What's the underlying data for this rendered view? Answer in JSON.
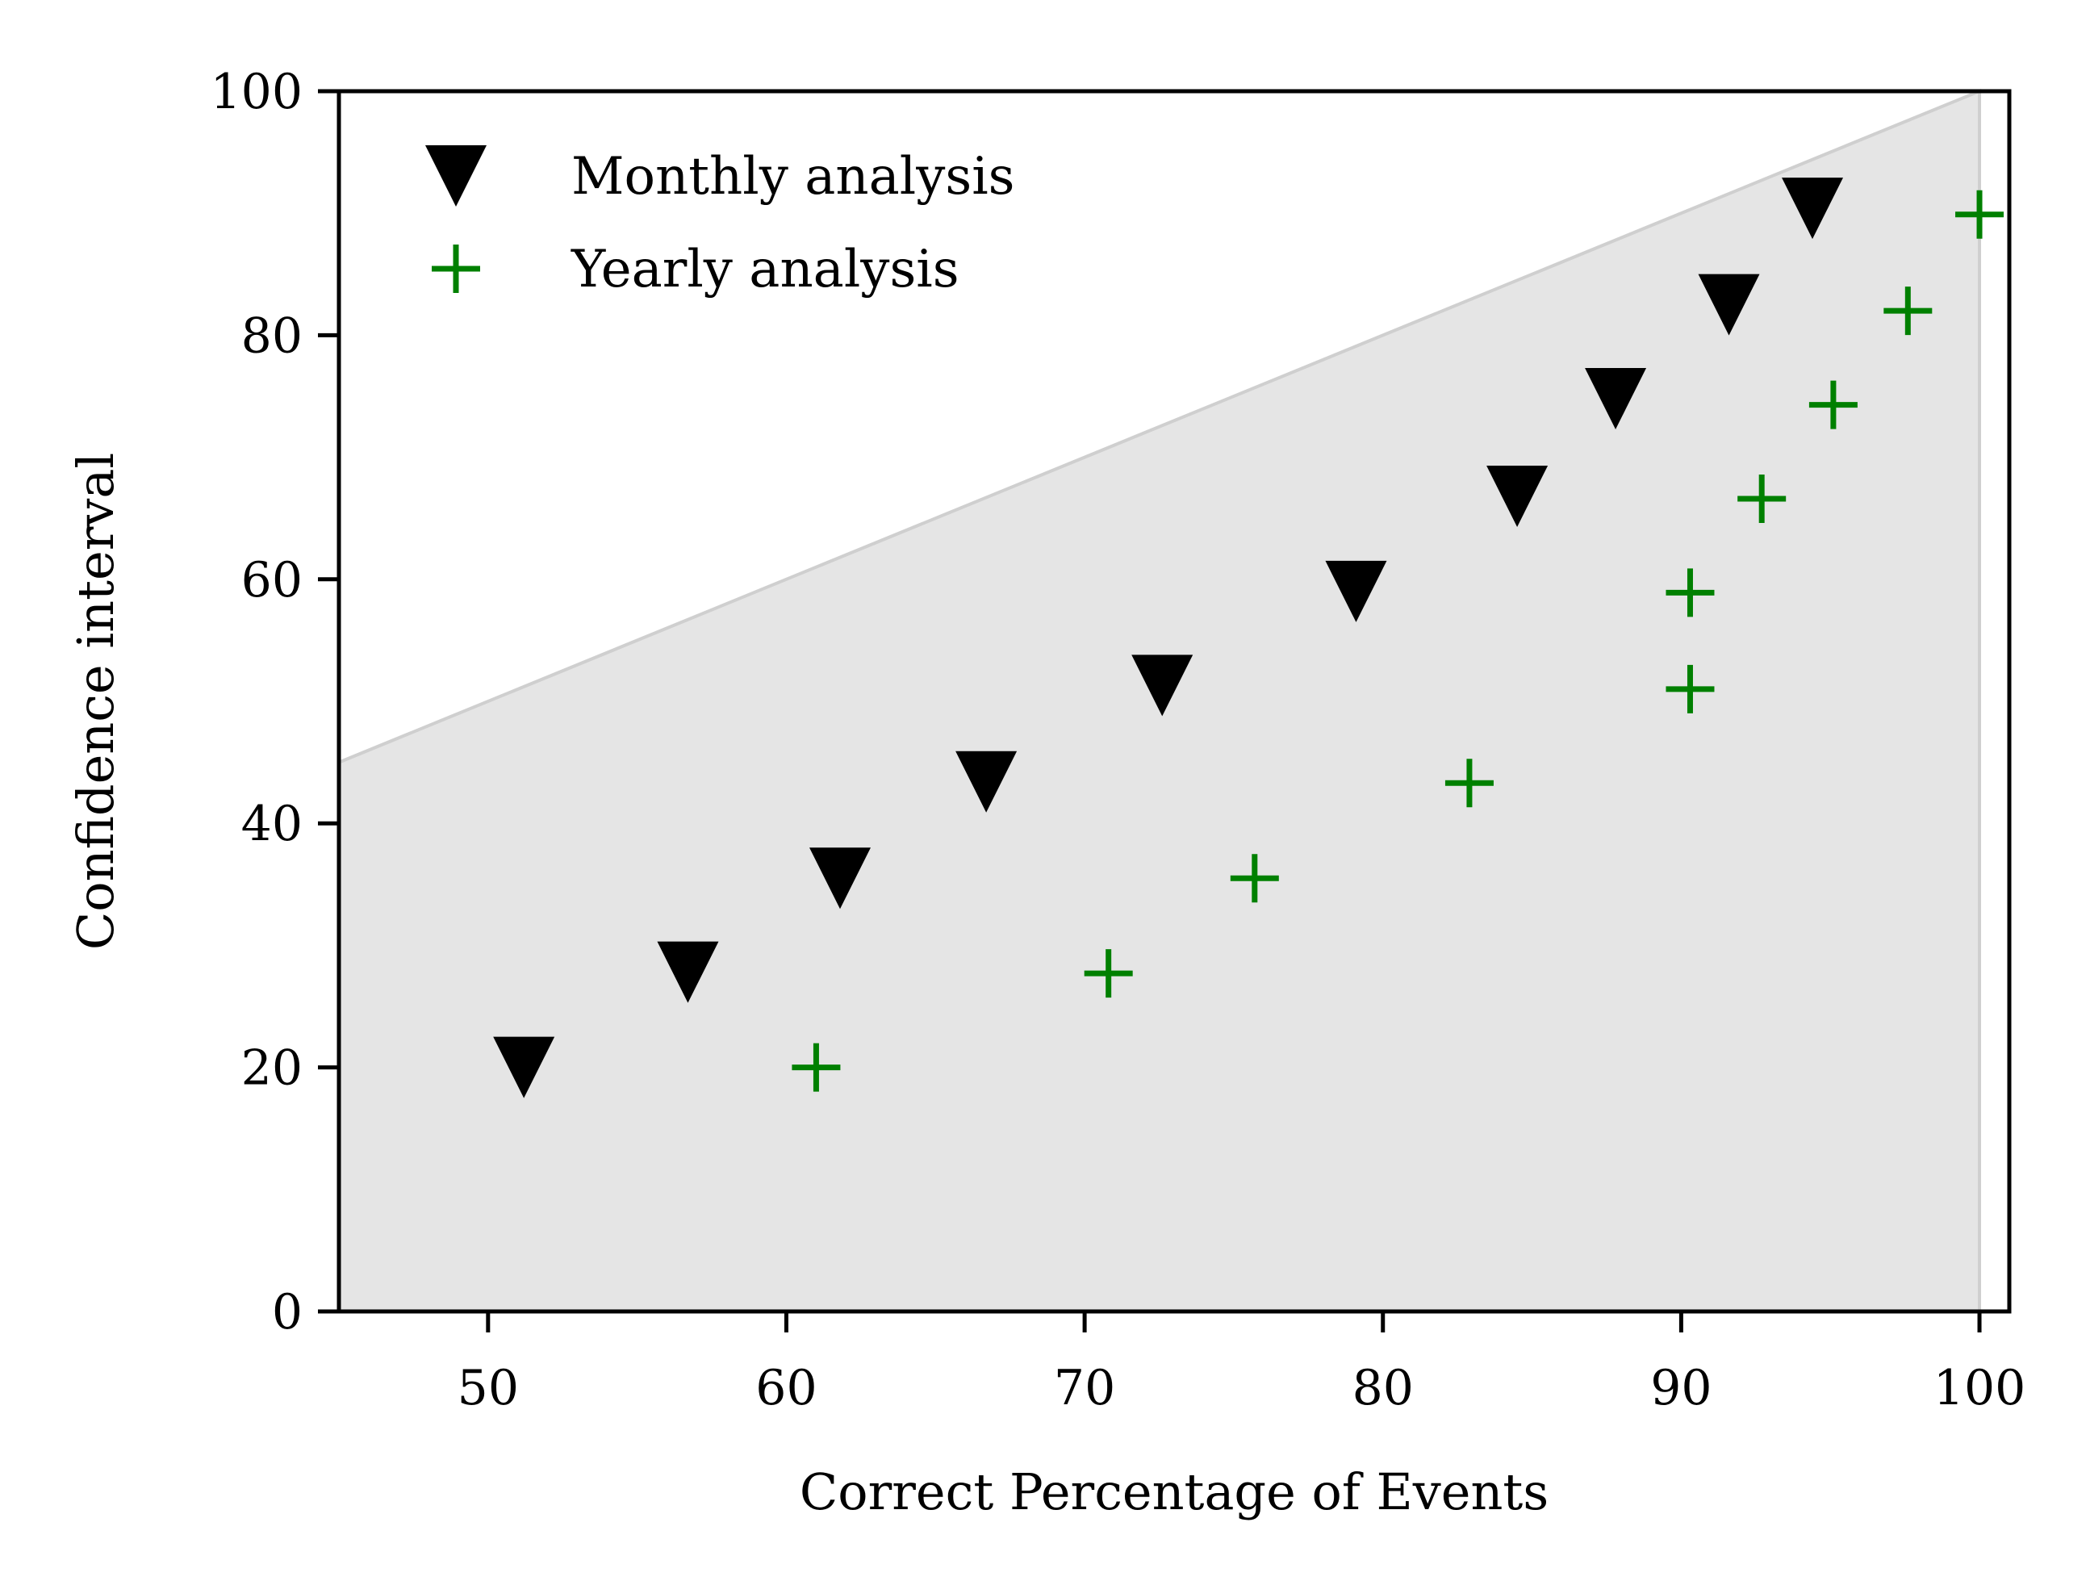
{
  "chart_data": {
    "type": "scatter",
    "xlabel": "Correct Percentage of Events",
    "ylabel": "Confidence interval",
    "xlim": [
      45,
      101
    ],
    "ylim": [
      0,
      100
    ],
    "xticks": [
      "50",
      "60",
      "70",
      "80",
      "90",
      "100"
    ],
    "yticks": [
      "0",
      "20",
      "40",
      "60",
      "80",
      "100"
    ],
    "grid": false,
    "legend": {
      "placement": "top-left"
    },
    "shaded_region": {
      "description_values": [
        [
          45,
          45
        ],
        [
          100,
          100
        ],
        [
          100,
          0
        ],
        [
          45,
          0
        ]
      ],
      "color": "#e5e5e5",
      "edge_color": "#cfcfcf"
    },
    "series": [
      {
        "name": "Monthly analysis",
        "marker": "triangle-down",
        "color": "#000000",
        "x": [
          51.2,
          56.7,
          61.8,
          66.7,
          72.6,
          79.1,
          84.5,
          87.8,
          91.6,
          94.4
        ],
        "y": [
          20,
          27.8,
          35.5,
          43.4,
          51.3,
          59.0,
          66.8,
          74.8,
          82.5,
          90.4
        ]
      },
      {
        "name": "Yearly analysis",
        "marker": "plus",
        "color": "#008000",
        "x": [
          61.0,
          70.8,
          75.7,
          82.9,
          90.3,
          90.3,
          92.7,
          95.1,
          97.6,
          100.0
        ],
        "y": [
          20,
          27.7,
          35.5,
          43.3,
          51.0,
          58.9,
          66.6,
          74.3,
          82.0,
          89.9
        ]
      }
    ]
  }
}
